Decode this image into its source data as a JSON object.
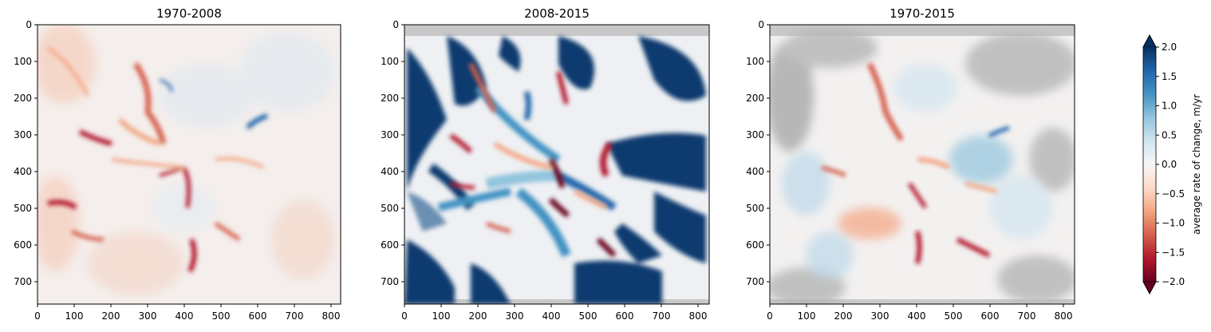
{
  "chart_data": [
    {
      "type": "heatmap",
      "title": "1970-2008",
      "xlim": [
        0,
        824
      ],
      "ylim": [
        760,
        0
      ],
      "xticks": [
        "0",
        "100",
        "200",
        "300",
        "400",
        "500",
        "600",
        "700",
        "800"
      ],
      "yticks": [
        "0",
        "100",
        "200",
        "300",
        "400",
        "500",
        "600",
        "700"
      ],
      "value_range": [
        -2.0,
        2.0
      ],
      "dominant_pattern": "mostly near zero, red thinning streaks along glacier channels",
      "features": [
        {
          "x": 230,
          "y": 180,
          "value": -1.0
        },
        {
          "x": 400,
          "y": 390,
          "value": -1.2
        },
        {
          "x": 580,
          "y": 310,
          "value": 1.8
        },
        {
          "x": 390,
          "y": 470,
          "value": -1.0
        },
        {
          "x": 60,
          "y": 480,
          "value": -1.3
        },
        {
          "x": 520,
          "y": 560,
          "value": -0.9
        }
      ],
      "cmap": "RdBu"
    },
    {
      "type": "heatmap",
      "title": "2008-2015",
      "xlim": [
        0,
        824
      ],
      "ylim": [
        760,
        0
      ],
      "xticks": [
        "0",
        "100",
        "200",
        "300",
        "400",
        "500",
        "600",
        "700",
        "800"
      ],
      "yticks": [
        "0",
        "100",
        "200",
        "300",
        "400",
        "500",
        "600",
        "700"
      ],
      "value_range": [
        -2.0,
        2.0
      ],
      "dominant_pattern": "strong positive (dark blue) forested regions, radial red and blue glacier streaks, gray masked no-data",
      "features": [
        {
          "x": 420,
          "y": 400,
          "value": -2.0
        },
        {
          "x": 560,
          "y": 570,
          "value": -2.0
        },
        {
          "x": 560,
          "y": 340,
          "value": -1.8
        },
        {
          "x": 300,
          "y": 250,
          "value": 1.8
        },
        {
          "x": 100,
          "y": 150,
          "value": 2.0
        },
        {
          "x": 700,
          "y": 250,
          "value": 2.0
        }
      ],
      "cmap": "RdBu",
      "mask_color": "#c8c8c8"
    },
    {
      "type": "heatmap",
      "title": "1970-2015",
      "xlim": [
        0,
        824
      ],
      "ylim": [
        760,
        0
      ],
      "xticks": [
        "0",
        "100",
        "200",
        "300",
        "400",
        "500",
        "600",
        "700",
        "800"
      ],
      "yticks": [
        "0",
        "100",
        "200",
        "300",
        "400",
        "500",
        "600",
        "700"
      ],
      "value_range": [
        -2.0,
        2.0
      ],
      "dominant_pattern": "mostly near zero with red glacier thinning, light blue patches, gray masked regions near edges",
      "features": [
        {
          "x": 230,
          "y": 180,
          "value": -1.0
        },
        {
          "x": 390,
          "y": 480,
          "value": -1.2
        },
        {
          "x": 560,
          "y": 420,
          "value": 0.8
        },
        {
          "x": 600,
          "y": 570,
          "value": -1.5
        },
        {
          "x": 130,
          "y": 320,
          "value": 0.6
        }
      ],
      "cmap": "RdBu",
      "mask_color": "#c8c8c8"
    }
  ],
  "colorbar": {
    "label": "average rate of change, m/yr",
    "min": -2.0,
    "max": 2.0,
    "ticks": [
      "2.0",
      "1.5",
      "1.0",
      "0.5",
      "0.0",
      "−0.5",
      "−1.0",
      "−1.5",
      "−2.0"
    ],
    "extend": "both",
    "colors": [
      "#67001f",
      "#b2182b",
      "#d6604d",
      "#f4a582",
      "#fddbc7",
      "#f7f7f7",
      "#d1e5f0",
      "#92c5de",
      "#4393c3",
      "#2166ac",
      "#053061"
    ]
  }
}
